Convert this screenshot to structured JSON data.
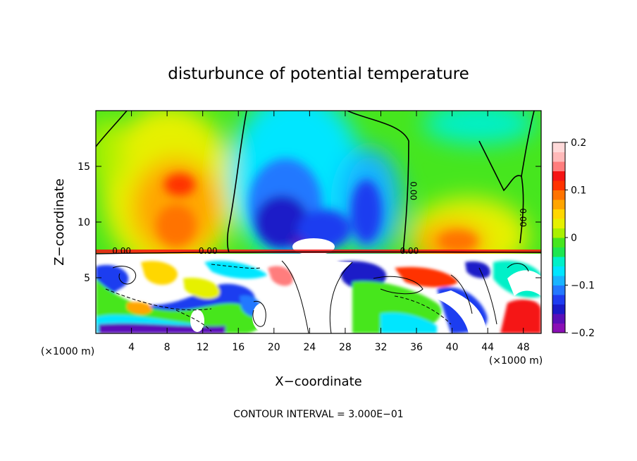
{
  "chart_data": {
    "type": "heatmap",
    "title": "disturbunce of potential temperature",
    "xlabel": "X−coordinate",
    "ylabel": "Z−coordinate",
    "x_unit_label": "(×1000 m)",
    "z_unit_label": "(×1000 m)",
    "footer": "CONTOUR INTERVAL = 3.000E−01",
    "xlim": [
      0,
      50
    ],
    "ylim": [
      0,
      20
    ],
    "x_ticks": [
      4,
      8,
      12,
      16,
      20,
      24,
      28,
      32,
      36,
      40,
      44,
      48
    ],
    "y_ticks": [
      5,
      10,
      15
    ],
    "colorbar": {
      "range": [
        -0.2,
        0.2
      ],
      "ticks": [
        "0.2",
        "0.1",
        "0",
        "−0.1",
        "−0.2"
      ],
      "tick_values": [
        0.2,
        0.1,
        0,
        -0.1,
        -0.2
      ],
      "colors": [
        "#8a0fb5",
        "#5a0fb8",
        "#1a1ac8",
        "#1e3cf0",
        "#2378ff",
        "#19b4ff",
        "#00e6ff",
        "#00f0c8",
        "#1ee650",
        "#46e61e",
        "#aaf000",
        "#e6f000",
        "#ffd700",
        "#ffa500",
        "#ff7300",
        "#ff3200",
        "#f51414",
        "#ff7d7d",
        "#ffb9b9",
        "#ffd9d9"
      ]
    },
    "contour_labels": [
      {
        "text": "0.00",
        "x": 2.9,
        "z": 7.4
      },
      {
        "text": "0.00",
        "x": 12.6,
        "z": 7.4
      },
      {
        "text": "0.00",
        "x": 35.2,
        "z": 7.4
      },
      {
        "text": "0.00",
        "x": 35.0,
        "z": 12.8
      },
      {
        "text": "0.00",
        "x": 47.3,
        "z": 10.4
      }
    ],
    "upper_layer_features": [
      {
        "kind": "warm",
        "x": 9.5,
        "z": 13.5,
        "value": 0.15
      },
      {
        "kind": "warm",
        "x": 40.5,
        "z": 9.3,
        "value": 0.12
      },
      {
        "kind": "cold",
        "x": 21.0,
        "z": 11.0,
        "value": -0.2
      },
      {
        "kind": "cold",
        "x": 30.5,
        "z": 11.5,
        "value": -0.17
      },
      {
        "kind": "cold",
        "x": 46.0,
        "z": 19.0,
        "value": -0.06
      }
    ],
    "interface_z": 7.2
  }
}
